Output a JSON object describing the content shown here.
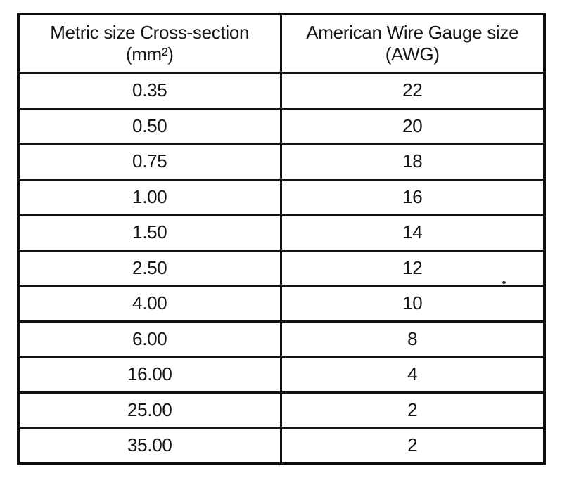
{
  "table": {
    "headers": [
      {
        "line1": "Metric size Cross-section",
        "line2": "(mm²)"
      },
      {
        "line1": "American Wire Gauge size",
        "line2": "(AWG)"
      }
    ],
    "rows": [
      {
        "metric": "0.35",
        "awg": "22"
      },
      {
        "metric": "0.50",
        "awg": "20"
      },
      {
        "metric": "0.75",
        "awg": "18"
      },
      {
        "metric": "1.00",
        "awg": "16"
      },
      {
        "metric": "1.50",
        "awg": "14"
      },
      {
        "metric": "2.50",
        "awg": "12"
      },
      {
        "metric": "4.00",
        "awg": "10"
      },
      {
        "metric": "6.00",
        "awg": "8"
      },
      {
        "metric": "16.00",
        "awg": "4"
      },
      {
        "metric": "25.00",
        "awg": "2"
      },
      {
        "metric": "35.00",
        "awg": "2"
      }
    ]
  },
  "colors": {
    "ink": "#131313",
    "paper": "#ffffff"
  }
}
